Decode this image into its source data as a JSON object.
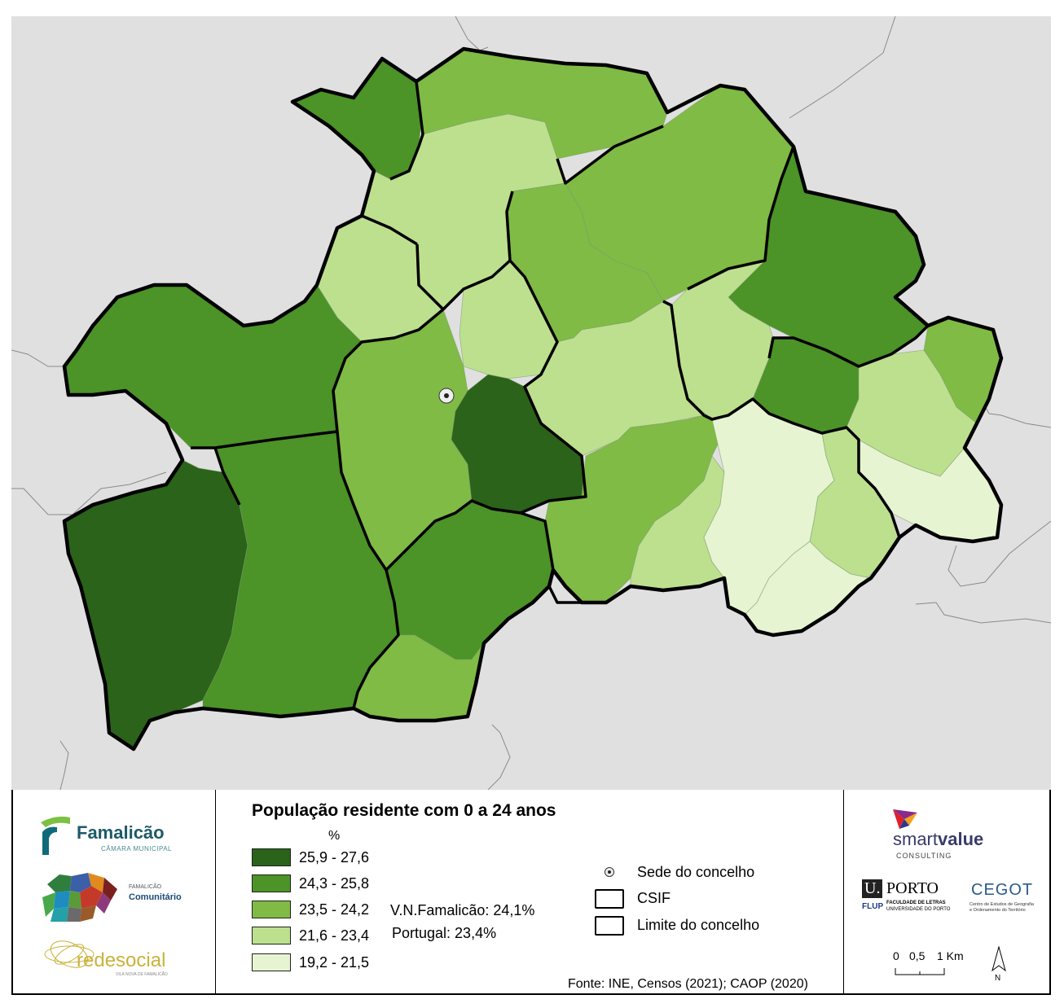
{
  "legend": {
    "title": "População residente com 0 a 24 anos",
    "unit": "%",
    "classes": [
      {
        "label": "25,9 - 27,6",
        "color": "#2a6319"
      },
      {
        "label": "24,3 - 25,8",
        "color": "#4c9328"
      },
      {
        "label": "23,5 - 24,2",
        "color": "#80bb45"
      },
      {
        "label": "21,6 - 23,4",
        "color": "#bde08f"
      },
      {
        "label": "19,2 - 21,5",
        "color": "#e6f4d2"
      }
    ],
    "stats": {
      "municipality": "V.N.Famalicão: 24,1%",
      "country": "Portugal: 23,4%"
    },
    "symbols": {
      "seat": "Sede do concelho",
      "csif": "CSIF",
      "boundary": "Limite do concelho"
    }
  },
  "source": "Fonte: INE, Censos (2021); CAOP (2020)",
  "map": {
    "background_color": "#e0e0e0",
    "neighbour_line_color": "#8a8a8a"
  },
  "logos": {
    "famalicao": {
      "name": "Famalicão",
      "sub": "CÂMARA MUNICIPAL"
    },
    "comunitario": {
      "line1": "FAMALICÃO",
      "line2": "Comunitário"
    },
    "redesocial": {
      "name": "redesocial",
      "sub": "VILA NOVA DE FAMALICÃO"
    },
    "smartvalue": {
      "smart": "smart",
      "value": "value",
      "sub": "CONSULTING"
    },
    "uporto": {
      "u": "U.",
      "porto": "PORTO",
      "flup": "FLUP",
      "line1": "FACULDADE DE LETRAS",
      "line2": "UNIVERSIDADE DO PORTO"
    },
    "cegot": {
      "name": "CEGOT",
      "line1": "Centro de Estudos de Geografia",
      "line2": "e Ordenamento do Território"
    }
  },
  "scale": {
    "labels": [
      "0",
      "0,5",
      "1 Km"
    ]
  },
  "north": "N"
}
